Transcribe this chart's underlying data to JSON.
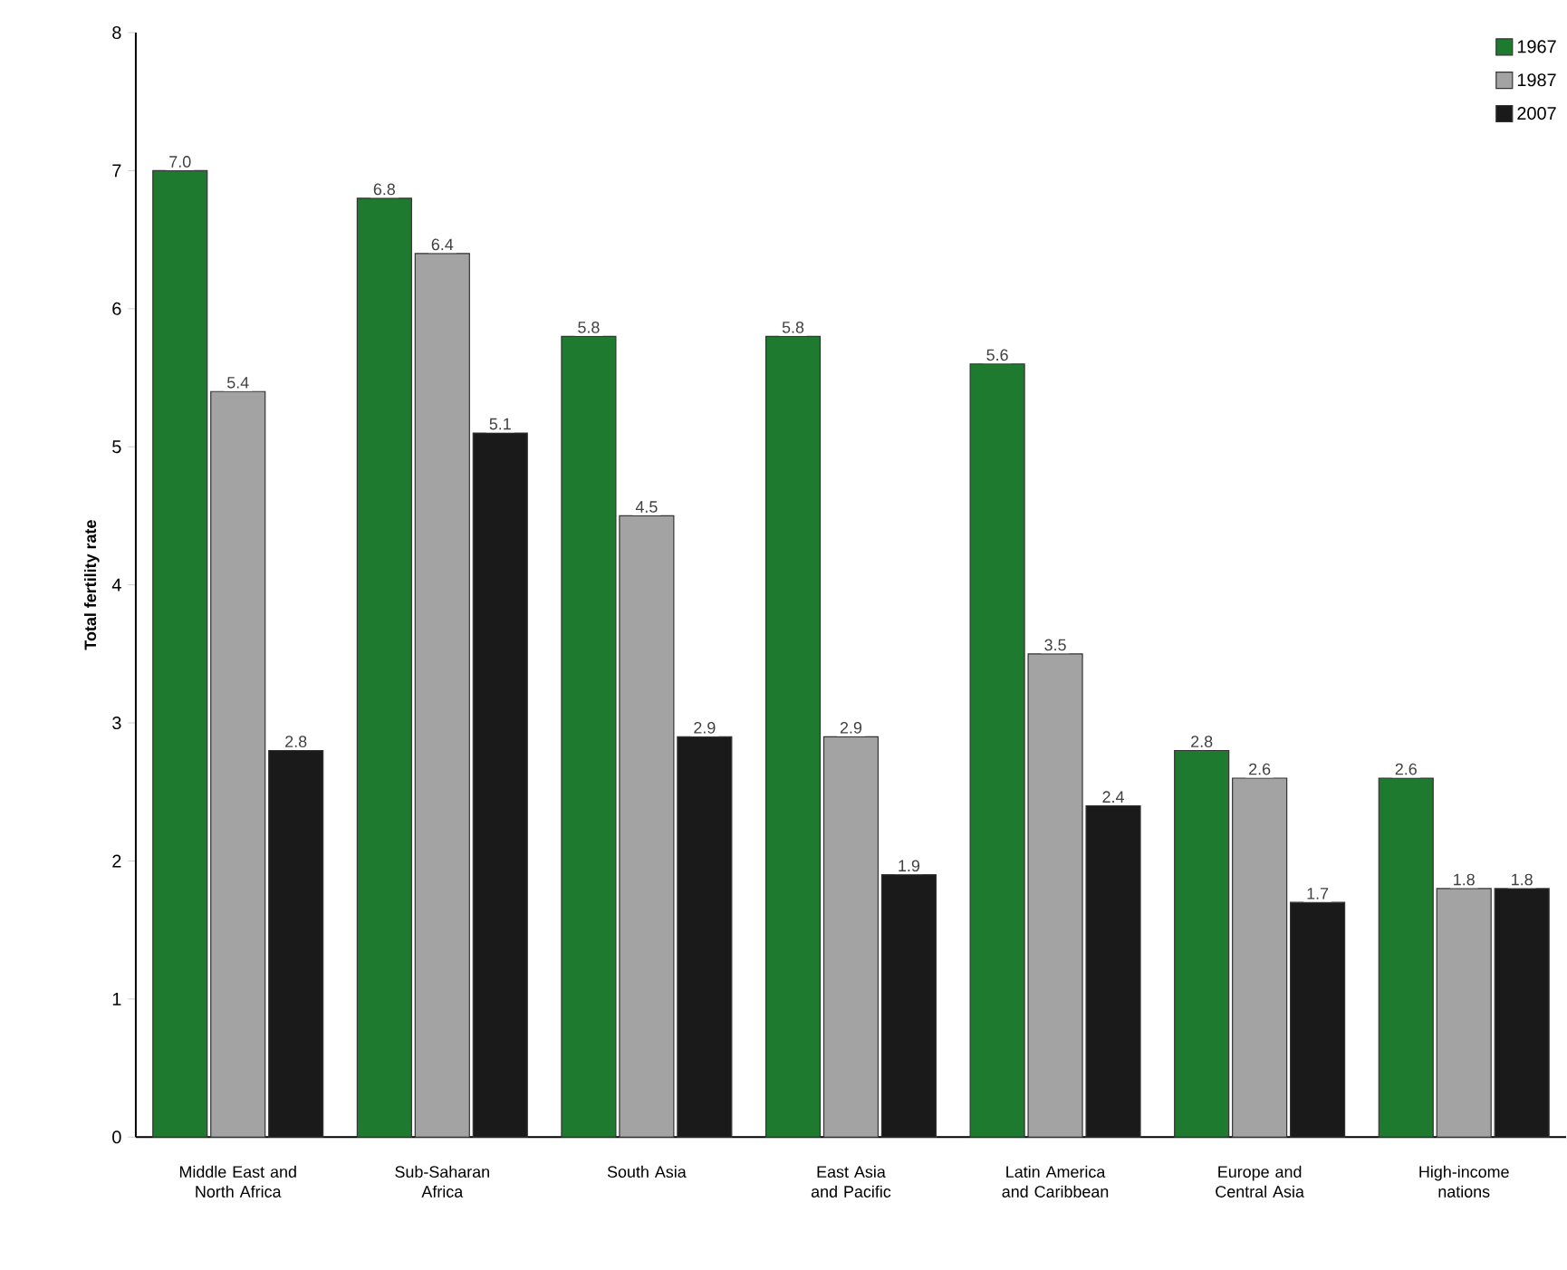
{
  "chart_data": {
    "type": "bar",
    "ylabel": "Total fertility rate",
    "categories": [
      "Middle East and North Africa",
      "Sub-Saharan Africa",
      "South Asia",
      "East Asia and Pacific",
      "Latin America and Caribbean",
      "Europe and Central Asia",
      "High-income nations"
    ],
    "series": [
      {
        "name": "1967",
        "color": "#1d7a2e",
        "values": [
          7.0,
          6.8,
          5.8,
          5.8,
          5.6,
          2.8,
          2.6
        ],
        "value_labels": [
          "7.0",
          "6.8",
          "5.8",
          "5.8",
          "5.6",
          "2.8",
          "2.6"
        ]
      },
      {
        "name": "1987",
        "color": "#a3a3a3",
        "values": [
          5.4,
          6.4,
          4.5,
          2.9,
          3.5,
          2.6,
          1.8
        ],
        "value_labels": [
          "5.4",
          "6.4",
          "4.5",
          "2.9",
          "3.5",
          "2.6",
          "1.8"
        ]
      },
      {
        "name": "2007",
        "color": "#1a1a1a",
        "values": [
          2.8,
          5.1,
          2.9,
          1.9,
          2.4,
          1.7,
          1.8
        ],
        "value_labels": [
          "2.8",
          "5.1",
          "2.9",
          "1.9",
          "2.4",
          "1.7",
          "1.8"
        ]
      }
    ],
    "ylim": [
      0,
      8
    ],
    "yticks": [
      0,
      1,
      2,
      3,
      4,
      5,
      6,
      7,
      8
    ],
    "legend": "top right"
  }
}
